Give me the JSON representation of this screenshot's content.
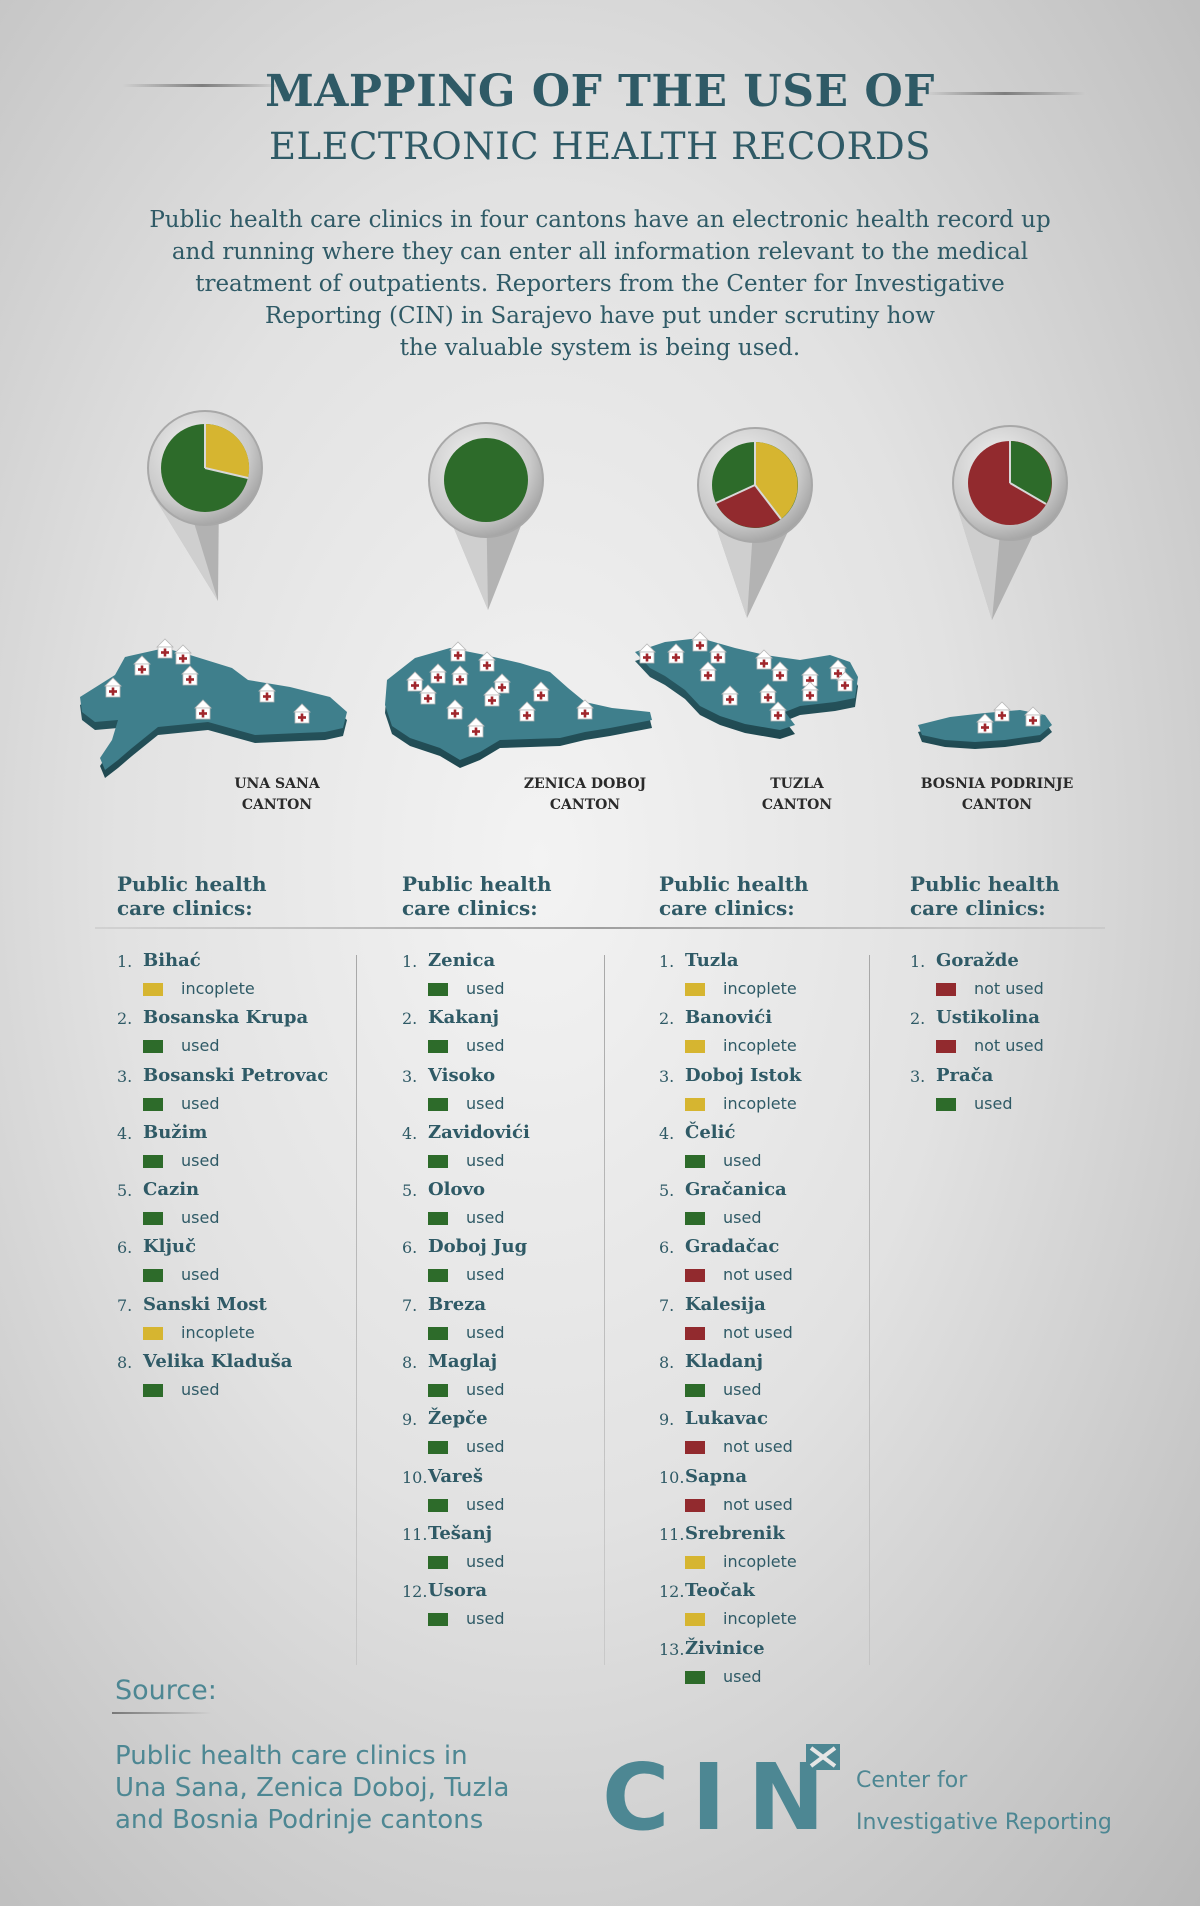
{
  "header": {
    "title_line1": "MAPPING OF THE USE OF",
    "title_line2": "ELECTRONIC HEALTH RECORDS"
  },
  "intro": {
    "line1": "Public health care clinics in four cantons have an electronic health record up",
    "line2": "and running where they can enter all information relevant to the medical",
    "line3": "treatment of outpatients. Reporters from the Center for Investigative",
    "line4": "Reporting (CIN) in Sarajevo have put under scrutiny how",
    "line5": "the valuable system is being used."
  },
  "colors": {
    "used": "#2d6b2a",
    "incoplete": "#d6b530",
    "not_used": "#922a2e",
    "map": "#3f7f8c",
    "accent": "#2f5a66"
  },
  "icons": {
    "pin": "map-pin-icon",
    "clinic": "clinic-house-icon",
    "logo_mark": "cross-x-icon"
  },
  "cantons": [
    {
      "name_line1": "UNA SANA",
      "name_line2": "CANTON",
      "list_heading_line1": "Public health",
      "list_heading_line2": "care clinics:",
      "clinics": [
        {
          "num": "1.",
          "name": "Bihać",
          "status": "incoplete"
        },
        {
          "num": "2.",
          "name": "Bosanska Krupa",
          "status": "used"
        },
        {
          "num": "3.",
          "name": "Bosanski Petrovac",
          "status": "used"
        },
        {
          "num": "4.",
          "name": "Bužim",
          "status": "used"
        },
        {
          "num": "5.",
          "name": "Cazin",
          "status": "used"
        },
        {
          "num": "6.",
          "name": "Ključ",
          "status": "used"
        },
        {
          "num": "7.",
          "name": "Sanski Most",
          "status": "incoplete"
        },
        {
          "num": "8.",
          "name": "Velika Kladuša",
          "status": "used"
        }
      ]
    },
    {
      "name_line1": "ZENICA DOBOJ",
      "name_line2": "CANTON",
      "list_heading_line1": "Public health",
      "list_heading_line2": "care clinics:",
      "clinics": [
        {
          "num": "1.",
          "name": "Zenica",
          "status": "used"
        },
        {
          "num": "2.",
          "name": "Kakanj",
          "status": "used"
        },
        {
          "num": "3.",
          "name": "Visoko",
          "status": "used"
        },
        {
          "num": "4.",
          "name": "Zavidovići",
          "status": "used"
        },
        {
          "num": "5.",
          "name": "Olovo",
          "status": "used"
        },
        {
          "num": "6.",
          "name": "Doboj Jug",
          "status": "used"
        },
        {
          "num": "7.",
          "name": "Breza",
          "status": "used"
        },
        {
          "num": "8.",
          "name": "Maglaj",
          "status": "used"
        },
        {
          "num": "9.",
          "name": "Žepče",
          "status": "used"
        },
        {
          "num": "10.",
          "name": "Vareš",
          "status": "used"
        },
        {
          "num": "11.",
          "name": "Tešanj",
          "status": "used"
        },
        {
          "num": "12.",
          "name": "Usora",
          "status": "used"
        }
      ]
    },
    {
      "name_line1": "TUZLA",
      "name_line2": "CANTON",
      "list_heading_line1": "Public health",
      "list_heading_line2": "care clinics:",
      "clinics": [
        {
          "num": "1.",
          "name": "Tuzla",
          "status": "incoplete"
        },
        {
          "num": "2.",
          "name": "Banovići",
          "status": "incoplete"
        },
        {
          "num": "3.",
          "name": "Doboj Istok",
          "status": "incoplete"
        },
        {
          "num": "4.",
          "name": "Čelić",
          "status": "used"
        },
        {
          "num": "5.",
          "name": "Gračanica",
          "status": "used"
        },
        {
          "num": "6.",
          "name": "Gradačac",
          "status": "not used"
        },
        {
          "num": "7.",
          "name": "Kalesija",
          "status": "not used"
        },
        {
          "num": "8.",
          "name": "Kladanj",
          "status": "used"
        },
        {
          "num": "9.",
          "name": "Lukavac",
          "status": "not used"
        },
        {
          "num": "10.",
          "name": "Sapna",
          "status": "not used"
        },
        {
          "num": "11.",
          "name": "Srebrenik",
          "status": "incoplete"
        },
        {
          "num": "12.",
          "name": "Teočak",
          "status": "incoplete"
        },
        {
          "num": "13.",
          "name": "Živinice",
          "status": "used"
        }
      ]
    },
    {
      "name_line1": "BOSNIA PODRINJE",
      "name_line2": "CANTON",
      "list_heading_line1": "Public health",
      "list_heading_line2": "care clinics:",
      "clinics": [
        {
          "num": "1.",
          "name": "Goražde",
          "status": "not used"
        },
        {
          "num": "2.",
          "name": "Ustikolina",
          "status": "not used"
        },
        {
          "num": "3.",
          "name": "Prača",
          "status": "used"
        }
      ]
    }
  ],
  "footer": {
    "source_label": "Source:",
    "source_line1": "Public health care clinics in",
    "source_line2": "Una Sana, Zenica Doboj, Tuzla",
    "source_line3": "and Bosnia Podrinje cantons",
    "logo_text": "CIN",
    "logo_sub_line1": "Center for",
    "logo_sub_line2": "Investigative Reporting"
  }
}
